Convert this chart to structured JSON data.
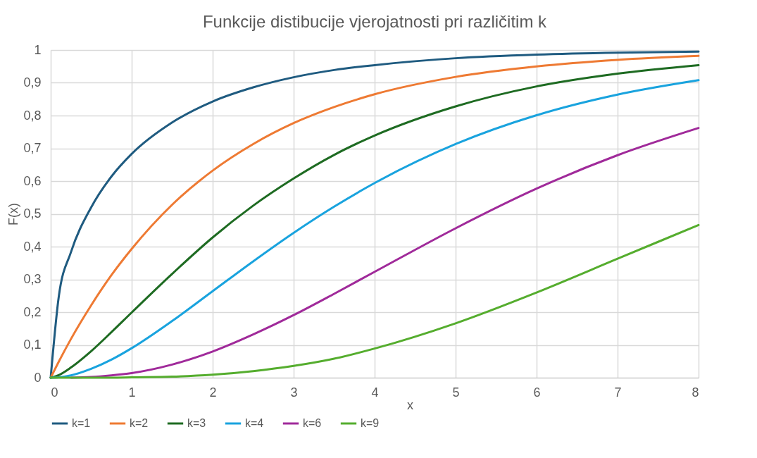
{
  "chart_data": {
    "type": "line",
    "title": "Funkcije distibucije vjerojatnosti pri različitim k",
    "xlabel": "x",
    "ylabel": "F(x)",
    "x": [
      0,
      0.1,
      0.25,
      0.5,
      0.75,
      1,
      1.5,
      2,
      2.5,
      3,
      3.5,
      4,
      5,
      6,
      7,
      8
    ],
    "series": [
      {
        "name": "k=1",
        "color": "#1f5b80",
        "values": [
          0,
          0.248,
          0.383,
          0.52,
          0.614,
          0.683,
          0.779,
          0.843,
          0.886,
          0.917,
          0.939,
          0.954,
          0.975,
          0.986,
          0.992,
          0.995
        ]
      },
      {
        "name": "k=2",
        "color": "#ee7a33",
        "values": [
          0,
          0.049,
          0.118,
          0.221,
          0.313,
          0.393,
          0.528,
          0.632,
          0.713,
          0.777,
          0.826,
          0.865,
          0.918,
          0.95,
          0.97,
          0.982
        ]
      },
      {
        "name": "k=3",
        "color": "#1e6b22",
        "values": [
          0,
          0.008,
          0.031,
          0.081,
          0.139,
          0.199,
          0.317,
          0.428,
          0.525,
          0.608,
          0.68,
          0.739,
          0.828,
          0.889,
          0.928,
          0.954
        ]
      },
      {
        "name": "k=4",
        "color": "#19a3de",
        "values": [
          0,
          0.001,
          0.007,
          0.027,
          0.055,
          0.09,
          0.173,
          0.264,
          0.355,
          0.442,
          0.522,
          0.594,
          0.713,
          0.801,
          0.864,
          0.908
        ]
      },
      {
        "name": "k=6",
        "color": "#a02a9a",
        "values": [
          null,
          null,
          0,
          0.002,
          0.007,
          0.014,
          0.04,
          0.08,
          0.132,
          0.191,
          0.256,
          0.323,
          0.456,
          0.577,
          0.679,
          0.762
        ]
      },
      {
        "name": "k=9",
        "color": "#55ad2e",
        "values": [
          0,
          0,
          0,
          0,
          0,
          0.001,
          0.003,
          0.009,
          0.02,
          0.036,
          0.058,
          0.089,
          0.166,
          0.26,
          0.363,
          0.466
        ]
      }
    ],
    "xlim": [
      0,
      8
    ],
    "xticks": [
      0,
      1,
      2,
      3,
      4,
      5,
      6,
      7,
      8
    ],
    "ylim": [
      0,
      1
    ],
    "yticks": [
      0,
      {
        "value": 0.1,
        "label": "0,1"
      },
      {
        "value": 0.2,
        "label": "0,2"
      },
      {
        "value": 0.3,
        "label": "0,3"
      },
      {
        "value": 0.4,
        "label": "0,4"
      },
      {
        "value": 0.5,
        "label": "0,5"
      },
      {
        "value": 0.6,
        "label": "0,6"
      },
      {
        "value": 0.7,
        "label": "0,7"
      },
      {
        "value": 0.8,
        "label": "0,8"
      },
      {
        "value": 0.9,
        "label": "0,9"
      },
      1
    ],
    "grid": true,
    "legend": "bottom",
    "marker": "none",
    "line_style": "solid"
  }
}
